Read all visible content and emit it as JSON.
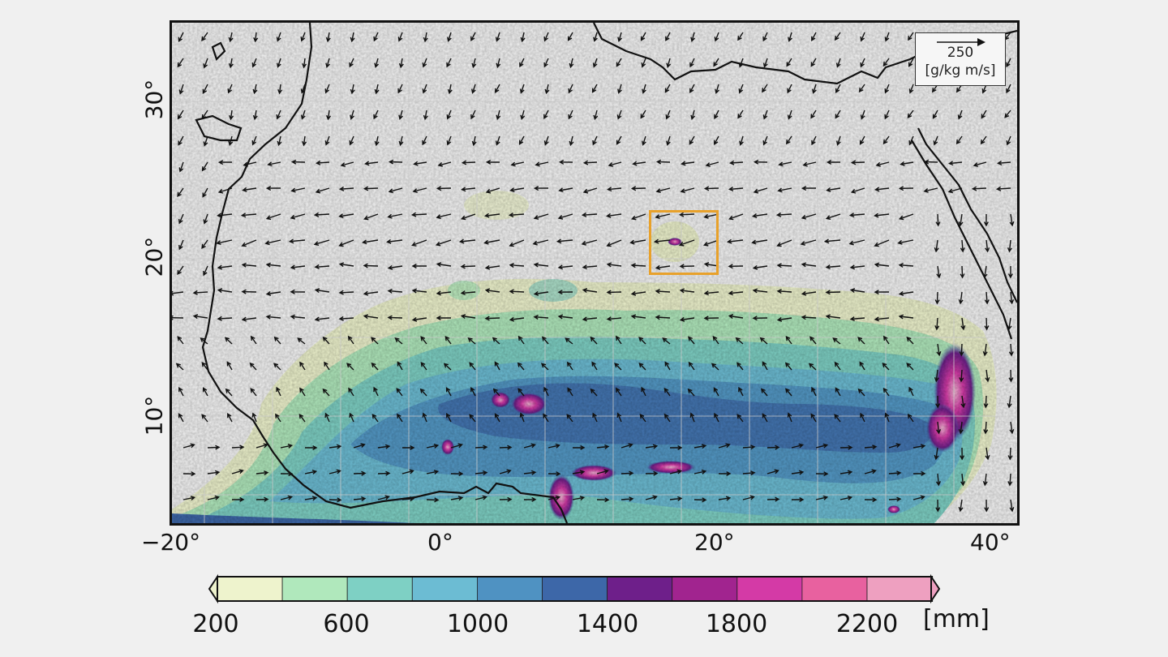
{
  "map": {
    "x_ticks": [
      "−20°",
      "0°",
      "20°",
      "40°"
    ],
    "y_ticks": [
      "30°",
      "20°",
      "10°"
    ],
    "vector_scale": {
      "value": "250",
      "unit": "[g/kg m/s]"
    },
    "highlight_box_color": "#e8a12a"
  },
  "colorbar": {
    "labels": [
      "200",
      "600",
      "1000",
      "1400",
      "1800",
      "2200"
    ],
    "unit": "[mm]",
    "colors": [
      "#eef3cd",
      "#b0e8bc",
      "#7ed0c4",
      "#6cbcd3",
      "#4f92c2",
      "#3d67a8",
      "#6e1f8a",
      "#a1248f",
      "#d43aa6",
      "#e8619f",
      "#eea0c0"
    ]
  }
}
